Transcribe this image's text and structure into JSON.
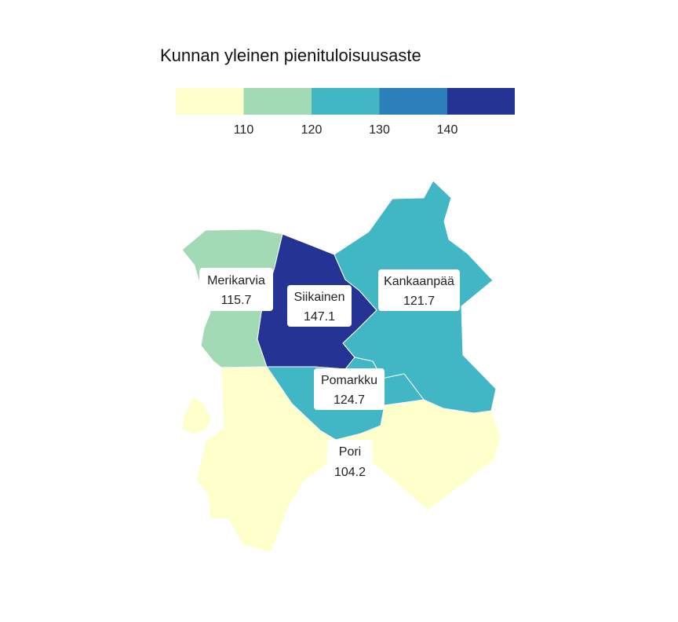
{
  "legend": {
    "title": "Kunnan yleinen pienituloisuusaste",
    "colors": [
      "#ffffcc",
      "#a1dab4",
      "#41b6c4",
      "#2c7fb8",
      "#253494"
    ],
    "ticks": [
      "110",
      "120",
      "130",
      "140"
    ]
  },
  "municipalities": [
    {
      "id": "merikarvia",
      "name": "Merikarvia",
      "value": "115.7",
      "color": "#a1dab4"
    },
    {
      "id": "siikainen",
      "name": "Siikainen",
      "value": "147.1",
      "color": "#253494"
    },
    {
      "id": "kankaanpaa",
      "name": "Kankaanpää",
      "value": "121.7",
      "color": "#41b6c4"
    },
    {
      "id": "pomarkku",
      "name": "Pomarkku",
      "value": "124.7",
      "color": "#41b6c4"
    },
    {
      "id": "pori",
      "name": "Pori",
      "value": "104.2",
      "color": "#ffffcc"
    }
  ]
}
